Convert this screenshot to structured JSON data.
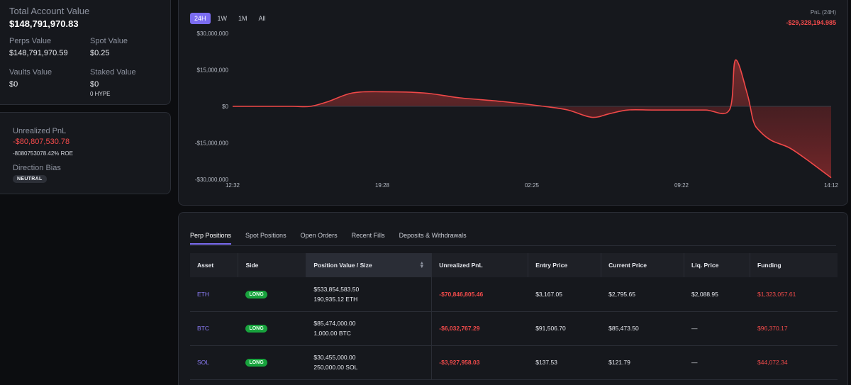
{
  "summary": {
    "total_label": "Total Account Value",
    "total_value": "$148,791,970.83",
    "perps_label": "Perps Value",
    "perps_value": "$148,791,970.59",
    "spot_label": "Spot Value",
    "spot_value": "$0.25",
    "vaults_label": "Vaults Value",
    "vaults_value": "$0",
    "staked_label": "Staked Value",
    "staked_value": "$0",
    "staked_sub": "0 HYPE"
  },
  "pnl": {
    "label": "Unrealized PnL",
    "value": "-$80,807,530.78",
    "roe": "-8080753078.42% ROE",
    "bias_label": "Direction Bias",
    "bias_value": "NEUTRAL"
  },
  "chart": {
    "ranges": [
      "24H",
      "1W",
      "1M",
      "All"
    ],
    "active_range": "24H",
    "pnl_label": "PnL (24H)",
    "pnl_value": "-$29,328,194.985"
  },
  "chart_data": {
    "type": "area",
    "title": "",
    "xlabel": "",
    "ylabel": "",
    "x_ticks": [
      "12:32",
      "19:28",
      "02:25",
      "09:22",
      "14:12"
    ],
    "y_ticks": [
      "$30,000,000",
      "$15,000,000",
      "$0",
      "-$15,000,000",
      "-$30,000,000"
    ],
    "ylim": [
      -30000000,
      30000000
    ],
    "series": [
      {
        "color": "#f04848",
        "x": [
          0,
          0.05,
          0.1,
          0.13,
          0.16,
          0.2,
          0.25,
          0.32,
          0.38,
          0.45,
          0.52,
          0.56,
          0.6,
          0.63,
          0.66,
          0.7,
          0.74,
          0.79,
          0.83,
          0.84,
          0.86,
          0.87,
          0.88,
          0.9,
          0.93,
          0.96,
          1
        ],
        "values": [
          0,
          0,
          0,
          0,
          2000000,
          5500000,
          6000000,
          5500000,
          3500000,
          2000000,
          0,
          -1500000,
          -4500000,
          -3000000,
          -1500000,
          -1500000,
          -1500000,
          -1500000,
          -1500000,
          19000000,
          5000000,
          -6000000,
          -10000000,
          -14000000,
          -17000000,
          -22000000,
          -29328195
        ]
      }
    ],
    "grid": false,
    "legend": "none"
  },
  "tabs": [
    "Perp Positions",
    "Spot Positions",
    "Open Orders",
    "Recent Fills",
    "Deposits & Withdrawals"
  ],
  "table": {
    "headers": [
      "Asset",
      "Side",
      "Position Value / Size",
      "Unrealized PnL",
      "Entry Price",
      "Current Price",
      "Liq. Price",
      "Funding"
    ],
    "sort_icon": "sort-updown-icon",
    "rows": [
      {
        "asset": "ETH",
        "side": "LONG",
        "value": "$533,854,583.50",
        "size": "190,935.12 ETH",
        "pnl": "-$70,846,805.46",
        "entry": "$3,167.05",
        "current": "$2,795.65",
        "liq": "$2,088.95",
        "funding": "$1,323,057.61"
      },
      {
        "asset": "BTC",
        "side": "LONG",
        "value": "$85,474,000.00",
        "size": "1,000.00 BTC",
        "pnl": "-$6,032,767.29",
        "entry": "$91,506.70",
        "current": "$85,473.50",
        "liq": "—",
        "funding": "$96,370.17"
      },
      {
        "asset": "SOL",
        "side": "LONG",
        "value": "$30,455,000.00",
        "size": "250,000.00 SOL",
        "pnl": "-$3,927,958.03",
        "entry": "$137.53",
        "current": "$121.79",
        "liq": "—",
        "funding": "$44,072.34"
      }
    ]
  }
}
